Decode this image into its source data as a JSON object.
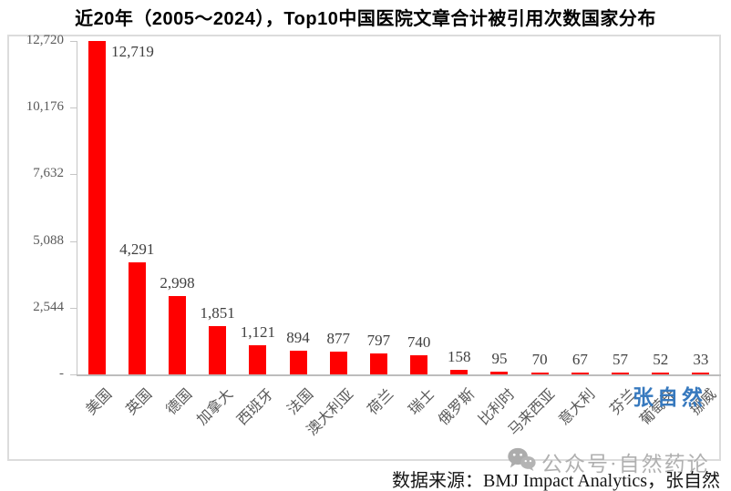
{
  "title": "近20年（2005～2024），Top10中国医院文章合计被引用次数国家分布",
  "chart_data": {
    "type": "bar",
    "title": "近20年（2005～2024），Top10中国医院文章合计被引用次数国家分布",
    "categories": [
      "美国",
      "英国",
      "德国",
      "加拿大",
      "西班牙",
      "法国",
      "澳大利亚",
      "荷兰",
      "瑞士",
      "俄罗斯",
      "比利时",
      "马来西亚",
      "意大利",
      "芬兰",
      "葡萄牙",
      "挪威"
    ],
    "values": [
      12719,
      4291,
      2998,
      1851,
      1121,
      894,
      877,
      797,
      740,
      158,
      95,
      70,
      67,
      57,
      52,
      33
    ],
    "value_labels": [
      "12,719",
      "4,291",
      "2,998",
      "1,851",
      "1,121",
      "894",
      "877",
      "797",
      "740",
      "158",
      "95",
      "70",
      "67",
      "57",
      "52",
      "33"
    ],
    "xlabel": "",
    "ylabel": "",
    "y_axis": {
      "tick_values": [
        12720,
        10176,
        7632,
        5088,
        2544,
        0
      ],
      "tick_labels": [
        "12,720",
        "10,176",
        "7,632",
        "5,088",
        "2,544",
        "-"
      ],
      "max": 12720
    },
    "ylim": [
      0,
      12720
    ],
    "grid": false,
    "legend": false,
    "bar_color": "#FF0000"
  },
  "watermarks": {
    "blue_signature": "张自然",
    "gray_account": "公众号·自然药论"
  },
  "footer": {
    "source": "数据来源：BMJ Impact Analytics，张自然"
  },
  "colors": {
    "bar": "#FF0000",
    "axis": "#c6c6c6",
    "tick_text": "#595959",
    "value_text": "#404040",
    "watermark_blue": "#3779be",
    "watermark_gray": "#b0b0b0"
  }
}
